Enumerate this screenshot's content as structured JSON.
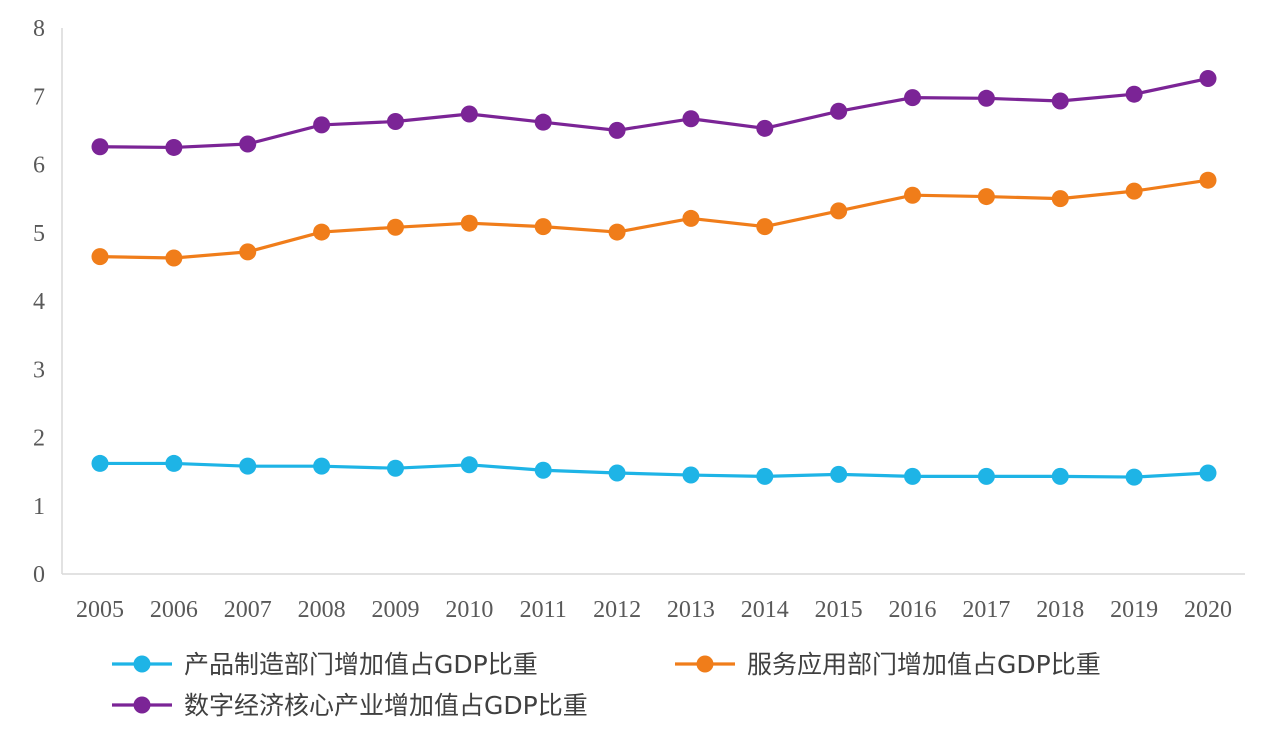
{
  "chart_data": {
    "type": "line",
    "title": "",
    "xlabel": "",
    "ylabel": "",
    "ylim": [
      0,
      8
    ],
    "yticks": [
      "0",
      "1",
      "2",
      "3",
      "4",
      "5",
      "6",
      "7",
      "8"
    ],
    "grid": false,
    "legend_position": "bottom",
    "categories": [
      "2005",
      "2006",
      "2007",
      "2008",
      "2009",
      "2010",
      "2011",
      "2012",
      "2013",
      "2014",
      "2015",
      "2016",
      "2017",
      "2018",
      "2019",
      "2020"
    ],
    "series": [
      {
        "name": "产品制造部门增加值占GDP比重",
        "color": "#1EB4E6",
        "values": [
          1.62,
          1.62,
          1.58,
          1.58,
          1.55,
          1.6,
          1.52,
          1.48,
          1.45,
          1.43,
          1.46,
          1.43,
          1.43,
          1.43,
          1.42,
          1.48
        ]
      },
      {
        "name": "服务应用部门增加值占GDP比重",
        "color": "#F07D1A",
        "values": [
          4.65,
          4.63,
          4.72,
          5.01,
          5.08,
          5.14,
          5.09,
          5.01,
          5.21,
          5.09,
          5.32,
          5.55,
          5.53,
          5.5,
          5.61,
          5.77
        ]
      },
      {
        "name": "数字经济核心产业增加值占GDP比重",
        "color": "#7B2496",
        "values": [
          6.26,
          6.25,
          6.3,
          6.58,
          6.63,
          6.74,
          6.62,
          6.5,
          6.67,
          6.53,
          6.78,
          6.98,
          6.97,
          6.93,
          7.03,
          7.26
        ]
      }
    ]
  }
}
